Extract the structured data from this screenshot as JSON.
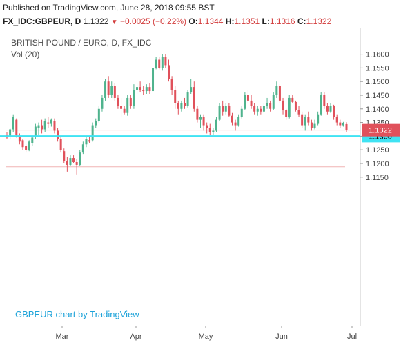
{
  "header": {
    "published": "Published on TradingView.com, June 28, 2018 09:55 BST",
    "symbol": "FX_IDC:GBPEUR, D",
    "last": "1.1322",
    "change": "−0.0025 (−0.22%)",
    "open_label": "O:",
    "open": "1.1344",
    "high_label": "H:",
    "high": "1.1351",
    "low_label": "L:",
    "low": "1.1316",
    "close_label": "C:",
    "close": "1.1322"
  },
  "overlay": {
    "title": "BRITISH POUND / EURO, D, FX_IDC",
    "volume": "Vol (20)",
    "watermark": "GBPEUR chart by TradingView"
  },
  "colors": {
    "up": "#4fb38d",
    "down": "#e0515b",
    "hline": "#3fe3f3",
    "last_badge": "#e0515b"
  },
  "chart_data": {
    "type": "candlestick",
    "title": "BRITISH POUND / EURO, D, FX_IDC",
    "x_ticks": [
      "Mar",
      "Apr",
      "May",
      "Jun",
      "Jul"
    ],
    "y_ticks": [
      "1.1600",
      "1.1550",
      "1.1500",
      "1.1450",
      "1.1400",
      "1.1350",
      "1.1300",
      "1.1250",
      "1.1200",
      "1.1150"
    ],
    "ylim": [
      1.1128,
      1.1628
    ],
    "price_line": {
      "value": 1.1322,
      "label": "1.1322"
    },
    "horizontal_line": {
      "value": 1.13,
      "label": "1.1300"
    },
    "support_line": 1.1188,
    "candles": [
      [
        1.1305,
        1.1315,
        1.129,
        1.1295
      ],
      [
        1.13,
        1.133,
        1.129,
        1.1325
      ],
      [
        1.1325,
        1.138,
        1.1315,
        1.137
      ],
      [
        1.136,
        1.1365,
        1.1295,
        1.1305
      ],
      [
        1.13,
        1.131,
        1.127,
        1.128
      ],
      [
        1.1285,
        1.129,
        1.125,
        1.126
      ],
      [
        1.1265,
        1.127,
        1.124,
        1.125
      ],
      [
        1.125,
        1.1285,
        1.1245,
        1.128
      ],
      [
        1.1275,
        1.13,
        1.1265,
        1.1295
      ],
      [
        1.13,
        1.1345,
        1.129,
        1.1335
      ],
      [
        1.133,
        1.135,
        1.1305,
        1.134
      ],
      [
        1.134,
        1.136,
        1.131,
        1.1325
      ],
      [
        1.1325,
        1.1365,
        1.1315,
        1.1355
      ],
      [
        1.135,
        1.137,
        1.133,
        1.1345
      ],
      [
        1.1345,
        1.1365,
        1.1335,
        1.136
      ],
      [
        1.1355,
        1.1365,
        1.131,
        1.132
      ],
      [
        1.132,
        1.133,
        1.128,
        1.129
      ],
      [
        1.129,
        1.13,
        1.124,
        1.125
      ],
      [
        1.1245,
        1.1255,
        1.12,
        1.121
      ],
      [
        1.121,
        1.1225,
        1.117,
        1.1195
      ],
      [
        1.1195,
        1.123,
        1.119,
        1.122
      ],
      [
        1.122,
        1.123,
        1.12,
        1.1205
      ],
      [
        1.1205,
        1.1215,
        1.116,
        1.1195
      ],
      [
        1.1195,
        1.125,
        1.119,
        1.124
      ],
      [
        1.124,
        1.128,
        1.1235,
        1.127
      ],
      [
        1.127,
        1.13,
        1.126,
        1.129
      ],
      [
        1.1285,
        1.13,
        1.1275,
        1.128
      ],
      [
        1.1285,
        1.135,
        1.128,
        1.134
      ],
      [
        1.134,
        1.1365,
        1.133,
        1.1355
      ],
      [
        1.1355,
        1.141,
        1.135,
        1.14
      ],
      [
        1.14,
        1.145,
        1.139,
        1.144
      ],
      [
        1.144,
        1.151,
        1.143,
        1.15
      ],
      [
        1.15,
        1.152,
        1.144,
        1.145
      ],
      [
        1.145,
        1.15,
        1.144,
        1.1485
      ],
      [
        1.1485,
        1.1495,
        1.143,
        1.144
      ],
      [
        1.144,
        1.145,
        1.14,
        1.141
      ],
      [
        1.141,
        1.144,
        1.137,
        1.14
      ],
      [
        1.14,
        1.141,
        1.138,
        1.1385
      ],
      [
        1.1385,
        1.145,
        1.1375,
        1.144
      ],
      [
        1.144,
        1.145,
        1.14,
        1.141
      ],
      [
        1.141,
        1.149,
        1.14,
        1.147
      ],
      [
        1.147,
        1.1495,
        1.1455,
        1.148
      ],
      [
        1.148,
        1.15,
        1.146,
        1.147
      ],
      [
        1.147,
        1.1485,
        1.145,
        1.1465
      ],
      [
        1.1465,
        1.149,
        1.1455,
        1.148
      ],
      [
        1.148,
        1.1495,
        1.1455,
        1.1465
      ],
      [
        1.1465,
        1.156,
        1.146,
        1.155
      ],
      [
        1.155,
        1.159,
        1.1545,
        1.158
      ],
      [
        1.158,
        1.159,
        1.1545,
        1.155
      ],
      [
        1.155,
        1.16,
        1.154,
        1.159
      ],
      [
        1.159,
        1.16,
        1.155,
        1.156
      ],
      [
        1.156,
        1.158,
        1.15,
        1.151
      ],
      [
        1.151,
        1.152,
        1.145,
        1.147
      ],
      [
        1.147,
        1.1485,
        1.14,
        1.142
      ],
      [
        1.142,
        1.143,
        1.138,
        1.14
      ],
      [
        1.14,
        1.143,
        1.139,
        1.142
      ],
      [
        1.142,
        1.144,
        1.14,
        1.141
      ],
      [
        1.141,
        1.147,
        1.1405,
        1.146
      ],
      [
        1.146,
        1.151,
        1.1455,
        1.148
      ],
      [
        1.148,
        1.15,
        1.139,
        1.14
      ],
      [
        1.14,
        1.141,
        1.135,
        1.136
      ],
      [
        1.136,
        1.138,
        1.133,
        1.137
      ],
      [
        1.137,
        1.138,
        1.132,
        1.134
      ],
      [
        1.134,
        1.135,
        1.131,
        1.133
      ],
      [
        1.133,
        1.1345,
        1.1305,
        1.1315
      ],
      [
        1.1315,
        1.133,
        1.1305,
        1.132
      ],
      [
        1.132,
        1.137,
        1.1315,
        1.136
      ],
      [
        1.136,
        1.142,
        1.1355,
        1.141
      ],
      [
        1.141,
        1.143,
        1.1375,
        1.139
      ],
      [
        1.139,
        1.142,
        1.138,
        1.141
      ],
      [
        1.141,
        1.142,
        1.137,
        1.1375
      ],
      [
        1.1375,
        1.1385,
        1.134,
        1.135
      ],
      [
        1.135,
        1.136,
        1.132,
        1.134
      ],
      [
        1.134,
        1.138,
        1.1335,
        1.137
      ],
      [
        1.137,
        1.141,
        1.1365,
        1.14
      ],
      [
        1.14,
        1.146,
        1.1395,
        1.145
      ],
      [
        1.145,
        1.147,
        1.142,
        1.143
      ],
      [
        1.143,
        1.145,
        1.14,
        1.141
      ],
      [
        1.141,
        1.142,
        1.138,
        1.139
      ],
      [
        1.139,
        1.141,
        1.1375,
        1.14
      ],
      [
        1.14,
        1.141,
        1.138,
        1.139
      ],
      [
        1.139,
        1.142,
        1.1385,
        1.141
      ],
      [
        1.141,
        1.144,
        1.14,
        1.142
      ],
      [
        1.142,
        1.143,
        1.139,
        1.14
      ],
      [
        1.14,
        1.146,
        1.1395,
        1.145
      ],
      [
        1.145,
        1.15,
        1.144,
        1.1485
      ],
      [
        1.1485,
        1.149,
        1.142,
        1.143
      ],
      [
        1.143,
        1.144,
        1.138,
        1.1395
      ],
      [
        1.1395,
        1.14,
        1.136,
        1.137
      ],
      [
        1.137,
        1.145,
        1.1365,
        1.144
      ],
      [
        1.144,
        1.145,
        1.142,
        1.1425
      ],
      [
        1.1425,
        1.143,
        1.139,
        1.1395
      ],
      [
        1.1395,
        1.141,
        1.137,
        1.138
      ],
      [
        1.138,
        1.139,
        1.133,
        1.134
      ],
      [
        1.134,
        1.138,
        1.132,
        1.137
      ],
      [
        1.137,
        1.139,
        1.134,
        1.135
      ],
      [
        1.135,
        1.136,
        1.132,
        1.133
      ],
      [
        1.133,
        1.136,
        1.1325,
        1.1345
      ],
      [
        1.1345,
        1.139,
        1.134,
        1.138
      ],
      [
        1.138,
        1.146,
        1.1375,
        1.145
      ],
      [
        1.145,
        1.146,
        1.14,
        1.141
      ],
      [
        1.141,
        1.142,
        1.138,
        1.139
      ],
      [
        1.139,
        1.142,
        1.1385,
        1.141
      ],
      [
        1.141,
        1.1415,
        1.136,
        1.137
      ],
      [
        1.137,
        1.138,
        1.134,
        1.135
      ],
      [
        1.135,
        1.136,
        1.133,
        1.134
      ],
      [
        1.134,
        1.1352,
        1.1335,
        1.1348
      ],
      [
        1.1344,
        1.1351,
        1.1316,
        1.1322
      ]
    ]
  }
}
